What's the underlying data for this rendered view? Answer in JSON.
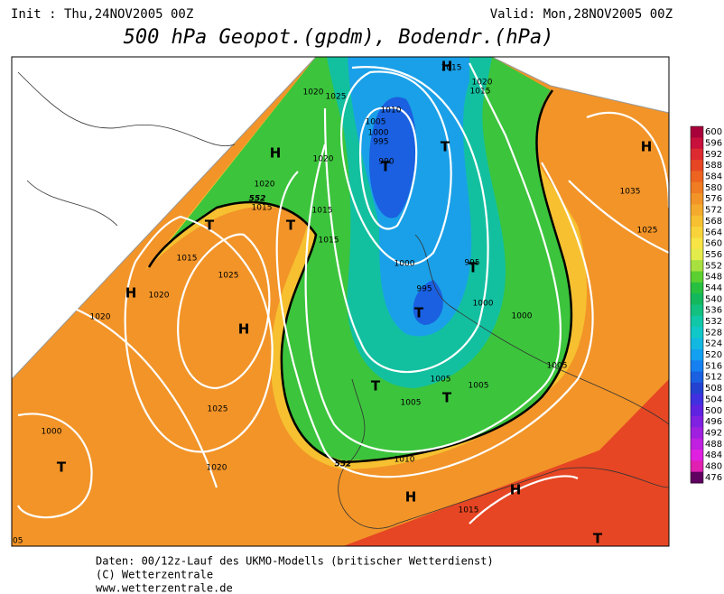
{
  "header": {
    "init": "Init : Thu,24NOV2005 00Z",
    "valid": "Valid: Mon,28NOV2005 00Z",
    "title": "500 hPa Geopot.(gpdm), Bodendr.(hPa)"
  },
  "map": {
    "isobar_labels": [
      "1025",
      "1020",
      "1015",
      "1020",
      "1015",
      "1010",
      "1005",
      "1000",
      "995",
      "990",
      "1020",
      "1020",
      "1015",
      "1015",
      "1015",
      "1015",
      "1020",
      "1020",
      "1025",
      "1025",
      "1020",
      "1000",
      "1035",
      "1025",
      "1000",
      "995",
      "995",
      "1000",
      "1000",
      "1005",
      "1005",
      "1005",
      "1005",
      "1010",
      "1015"
    ],
    "pressure_centers": [
      "H",
      "T",
      "T",
      "T",
      "T",
      "H",
      "H",
      "T",
      "T",
      "T",
      "T",
      "T",
      "H",
      "H",
      "H",
      "T",
      "H"
    ],
    "contour_labels": [
      "552",
      "552"
    ],
    "corner_label": "05"
  },
  "colorbar": {
    "levels": [
      "600",
      "596",
      "592",
      "588",
      "584",
      "580",
      "576",
      "572",
      "568",
      "564",
      "560",
      "556",
      "552",
      "548",
      "544",
      "540",
      "536",
      "532",
      "528",
      "524",
      "520",
      "516",
      "512",
      "508",
      "504",
      "500",
      "496",
      "492",
      "488",
      "484",
      "480",
      "476"
    ],
    "colors": [
      "#a8003a",
      "#c8103c",
      "#dc2a30",
      "#e64624",
      "#ec6420",
      "#f07c24",
      "#f29428",
      "#f4aa2c",
      "#f6c030",
      "#f8d43a",
      "#f8e444",
      "#e4ec4c",
      "#a8e040",
      "#5cd030",
      "#28c040",
      "#14b85c",
      "#12c080",
      "#10c8a8",
      "#10c8c8",
      "#12b8e0",
      "#14a0f0",
      "#1680f0",
      "#1a60e0",
      "#2442d0",
      "#4030e0",
      "#6022e0",
      "#8020e0",
      "#a020e0",
      "#c020e0",
      "#e020e0",
      "#e020b0",
      "#600060"
    ]
  },
  "footer": {
    "lines": [
      "Daten: 00/12z-Lauf des UKMO-Modells (britischer Wetterdienst)",
      "(C) Wetterzentrale",
      "www.wetterzentrale.de"
    ]
  }
}
